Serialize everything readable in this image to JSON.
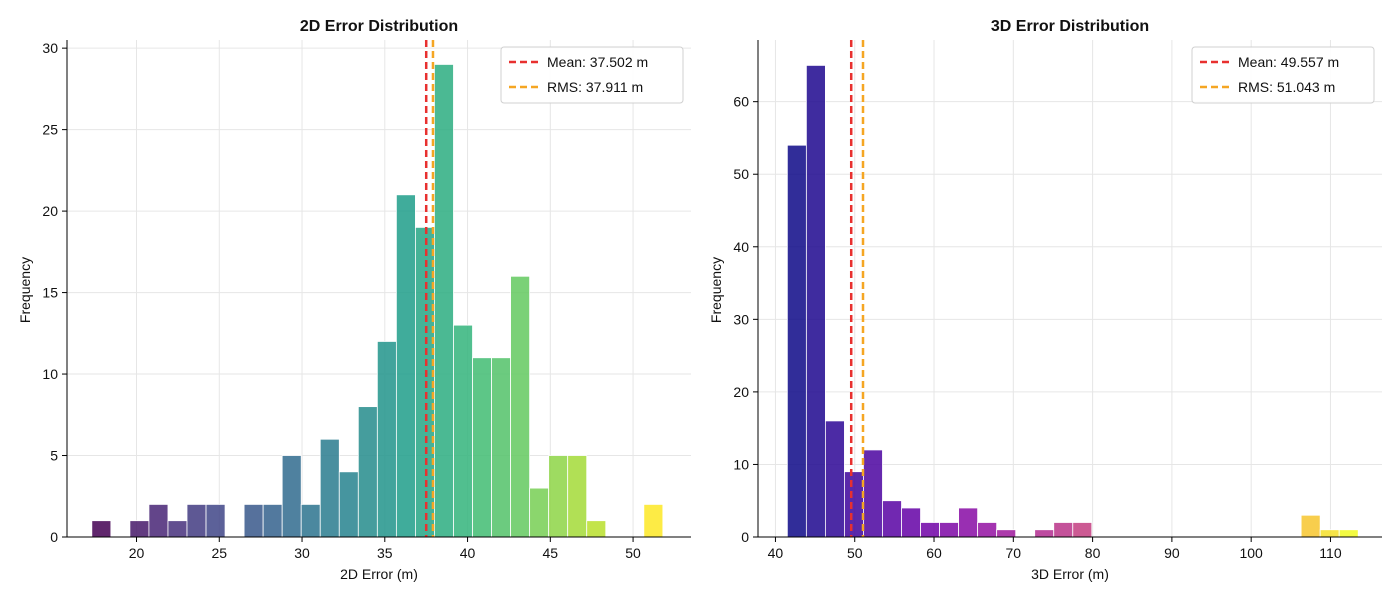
{
  "chart_data": [
    {
      "type": "bar",
      "title": "2D Error Distribution",
      "xlabel": "2D Error (m)",
      "ylabel": "Frequency",
      "xlim": [
        15.8,
        53.5
      ],
      "ylim": [
        0,
        30.5
      ],
      "xticks": [
        20,
        25,
        30,
        35,
        40,
        45,
        50
      ],
      "yticks": [
        0,
        5,
        10,
        15,
        20,
        25,
        30
      ],
      "grid": true,
      "legend_position": "top-right",
      "colormap": "viridis",
      "bin_edges": [
        17.3,
        18.45,
        19.6,
        20.75,
        21.9,
        23.05,
        24.2,
        25.35,
        26.5,
        27.65,
        28.8,
        29.95,
        31.1,
        32.25,
        33.4,
        34.55,
        35.7,
        36.85,
        38.0,
        39.15,
        40.3,
        41.45,
        42.6,
        43.75,
        44.9,
        46.05,
        47.2,
        48.35,
        49.5,
        50.65,
        51.8
      ],
      "values": [
        1,
        0,
        1,
        2,
        1,
        2,
        2,
        0,
        2,
        2,
        5,
        2,
        6,
        4,
        8,
        12,
        21,
        19,
        29,
        13,
        11,
        11,
        16,
        3,
        5,
        5,
        1,
        0,
        0,
        2
      ],
      "reference_lines": [
        {
          "label": "Mean: 37.502 m",
          "x": 37.502,
          "color": "#e8302f",
          "style": "dashed"
        },
        {
          "label": "RMS: 37.911 m",
          "x": 37.911,
          "color": "#f5a623",
          "style": "dashed"
        }
      ]
    },
    {
      "type": "bar",
      "title": "3D Error Distribution",
      "xlabel": "3D Error (m)",
      "ylabel": "Frequency",
      "xlim": [
        37.8,
        116.5
      ],
      "ylim": [
        0,
        68.5
      ],
      "xticks": [
        40,
        50,
        60,
        70,
        80,
        90,
        100,
        110
      ],
      "yticks": [
        0,
        10,
        20,
        30,
        40,
        50,
        60
      ],
      "grid": true,
      "legend_position": "top-right",
      "colormap": "plasma",
      "bin_edges": [
        41.5,
        43.9,
        46.3,
        48.7,
        51.1,
        53.5,
        55.9,
        58.3,
        60.7,
        63.1,
        65.5,
        67.9,
        70.3,
        72.7,
        75.1,
        77.5,
        79.9,
        82.3,
        84.7,
        87.1,
        89.5,
        91.9,
        94.3,
        96.7,
        99.1,
        101.5,
        103.9,
        106.3,
        108.7,
        111.1,
        113.5
      ],
      "values": [
        54,
        65,
        16,
        9,
        12,
        5,
        4,
        2,
        2,
        4,
        2,
        1,
        0,
        1,
        2,
        2,
        0,
        0,
        0,
        0,
        0,
        0,
        0,
        0,
        0,
        0,
        0,
        3,
        1,
        1
      ],
      "reference_lines": [
        {
          "label": "Mean: 49.557 m",
          "x": 49.557,
          "color": "#e8302f",
          "style": "dashed"
        },
        {
          "label": "RMS: 51.043 m",
          "x": 51.043,
          "color": "#f5a623",
          "style": "dashed"
        }
      ]
    }
  ]
}
